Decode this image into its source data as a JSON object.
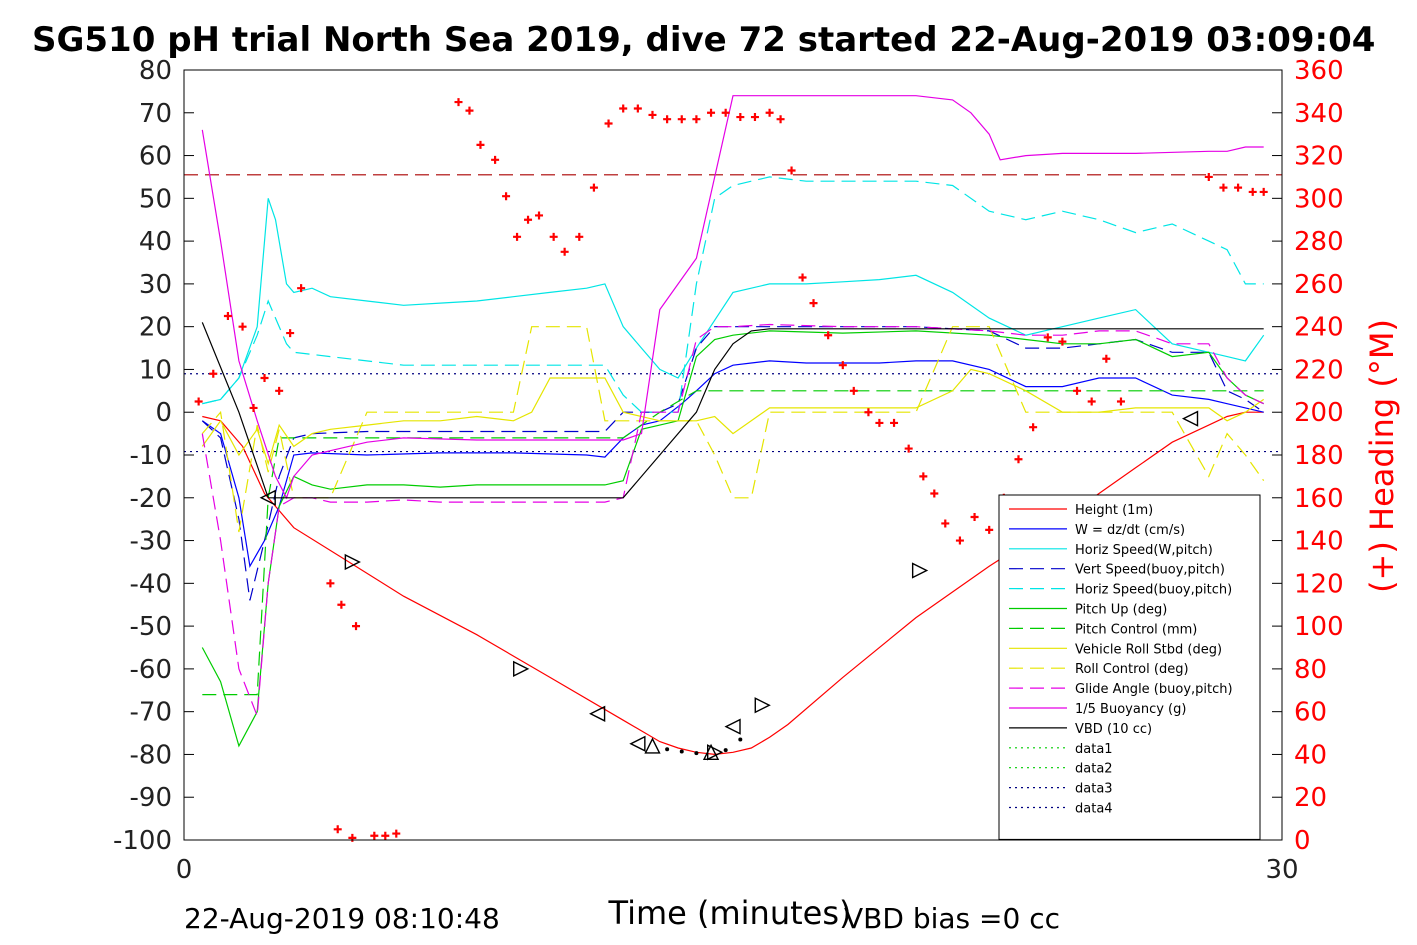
{
  "chart_data": {
    "type": "line",
    "title": "SG510 pH trial North Sea 2019, dive 72 started 22-Aug-2019 03:09:04",
    "xlabel": "Time (minutes)",
    "ylabel_right": "(+) Heading (°M)",
    "footer_left": "22-Aug-2019 08:10:48",
    "footer_right": "VBD bias =0 cc",
    "xlim": [
      0,
      30
    ],
    "ylim": [
      -100,
      80
    ],
    "y2lim": [
      0,
      360
    ],
    "xticks": [
      "0",
      "30"
    ],
    "yticks": [
      "80",
      "70",
      "60",
      "50",
      "40",
      "30",
      "20",
      "10",
      "0",
      "-10",
      "-20",
      "-30",
      "-40",
      "-50",
      "-60",
      "-70",
      "-80",
      "-90",
      "-100"
    ],
    "y2ticks": [
      "360",
      "340",
      "320",
      "300",
      "280",
      "260",
      "240",
      "220",
      "200",
      "180",
      "160",
      "140",
      "120",
      "100",
      "80",
      "60",
      "40",
      "20",
      "0"
    ],
    "legend_position": "lower-right",
    "reference_lines": [
      {
        "y": 55.5,
        "color": "#aa0000",
        "style": "dashed"
      },
      {
        "y": 9,
        "color": "#000080",
        "style": "dotted"
      },
      {
        "y": -9.2,
        "color": "#000080",
        "style": "dotted"
      }
    ],
    "series": [
      {
        "name": "Height (1m)",
        "color": "#ff0000",
        "style": "solid",
        "x": [
          0.5,
          1.0,
          1.6,
          2.2,
          3.0,
          4.5,
          6.0,
          8.0,
          10.0,
          12.0,
          13.0,
          13.5,
          14.0,
          14.5,
          15.0,
          15.5,
          16.0,
          16.5,
          18.0,
          20.0,
          22.0,
          24.0,
          25.0,
          26.0,
          27.0,
          28.0,
          28.5,
          29.0,
          29.5
        ],
        "y": [
          -1,
          -2,
          -8,
          -19,
          -27,
          -35,
          -43,
          -52,
          -62,
          -72,
          -77,
          -78.5,
          -79.5,
          -80,
          -79.5,
          -78.5,
          -76,
          -73,
          -62,
          -48,
          -36,
          -25,
          -19,
          -13,
          -7,
          -3,
          -1,
          0,
          0
        ]
      },
      {
        "name": "W = dz/dt (cm/s)",
        "color": "#0000ff",
        "style": "solid",
        "x": [
          0.5,
          1.0,
          1.5,
          1.8,
          2.2,
          2.6,
          3.0,
          3.5,
          5.0,
          7.0,
          9.0,
          11.0,
          11.5,
          12.0,
          12.5,
          13.0,
          13.6,
          14.0,
          14.5,
          15.0,
          15.5,
          16.0,
          17.0,
          18.0,
          19.0,
          20.0,
          21.0,
          22.0,
          23.0,
          24.0,
          25.0,
          26.0,
          27.0,
          28.0,
          28.5,
          29.0,
          29.5
        ],
        "y": [
          -2,
          -5,
          -20,
          -36,
          -30,
          -22,
          -10,
          -9.5,
          -10,
          -9.5,
          -9.5,
          -10,
          -10.5,
          -6,
          -3,
          -2,
          2,
          5,
          9,
          11,
          11.5,
          12,
          11.5,
          11.5,
          11.5,
          12,
          12,
          10,
          6,
          6,
          8,
          8,
          4,
          3,
          2,
          1,
          0
        ]
      },
      {
        "name": "Horiz Speed(W,pitch)",
        "color": "#00e5e5",
        "style": "solid",
        "x": [
          0.5,
          1.0,
          1.5,
          2.0,
          2.3,
          2.5,
          2.8,
          3.0,
          3.5,
          4.0,
          5.0,
          6.0,
          7.0,
          8.0,
          9.0,
          10.0,
          11.0,
          11.5,
          12.0,
          12.5,
          13.0,
          13.5,
          14.0,
          15.0,
          16.0,
          17.0,
          18.0,
          19.0,
          20.0,
          21.0,
          22.0,
          23.0,
          24.0,
          25.0,
          26.0,
          27.0,
          28.0,
          28.5,
          29.0,
          29.5
        ],
        "y": [
          2,
          3,
          8,
          20,
          50,
          45,
          30,
          28,
          29,
          27,
          26,
          25,
          25.5,
          26,
          27,
          28,
          29,
          30,
          20,
          15,
          10,
          8,
          15,
          28,
          30,
          30,
          30.5,
          31,
          32,
          28,
          22,
          18,
          20,
          22,
          24,
          16,
          14,
          13,
          12,
          18
        ]
      },
      {
        "name": "Vert Speed(buoy,pitch)",
        "color": "#0000cc",
        "style": "dashed",
        "x": [
          0.5,
          1.0,
          1.5,
          1.8,
          2.2,
          2.6,
          3.0,
          3.5,
          5.0,
          7.0,
          9.0,
          11.0,
          11.5,
          12.0,
          12.5,
          13.0,
          13.5,
          14.0,
          14.5,
          15.0,
          16.0,
          18.0,
          20.0,
          22.0,
          23.0,
          24.0,
          25.0,
          26.0,
          27.0,
          28.0,
          28.5,
          29.0,
          29.5
        ],
        "y": [
          -2,
          -6,
          -25,
          -44,
          -30,
          -15,
          -6,
          -5,
          -4.5,
          -4.5,
          -4.5,
          -4.5,
          -4.5,
          0,
          0,
          0,
          2,
          15,
          20,
          20,
          20,
          20,
          20,
          19,
          15,
          15,
          16,
          17,
          14,
          14,
          5,
          3,
          0
        ]
      },
      {
        "name": "Horiz Speed(buoy,pitch)",
        "color": "#00e5e5",
        "style": "dashed",
        "x": [
          0.5,
          1.0,
          1.5,
          2.0,
          2.3,
          2.5,
          2.8,
          3.0,
          4.0,
          6.0,
          8.0,
          10.0,
          11.0,
          11.5,
          12.0,
          12.5,
          13.0,
          13.5,
          14.0,
          14.5,
          15.0,
          16.0,
          17.0,
          18.0,
          19.0,
          20.0,
          21.0,
          22.0,
          23.0,
          24.0,
          25.0,
          26.0,
          27.0,
          28.0,
          28.5,
          29.0,
          29.5
        ],
        "y": [
          2,
          3,
          8,
          18,
          26,
          22,
          16,
          14,
          13,
          11,
          11,
          11,
          11,
          11,
          4,
          0,
          0,
          0,
          30,
          50,
          53,
          55,
          54,
          54,
          54,
          54,
          53,
          47,
          45,
          47,
          45,
          42,
          44,
          40,
          38,
          30,
          30
        ]
      },
      {
        "name": "Pitch Up (deg)",
        "color": "#00cc00",
        "style": "solid",
        "x": [
          0.5,
          1.0,
          1.5,
          2.0,
          2.3,
          2.6,
          3.0,
          3.5,
          4.0,
          5.0,
          6.0,
          7.0,
          8.0,
          9.0,
          10.0,
          11.0,
          11.5,
          12.0,
          12.5,
          13.0,
          13.5,
          14.0,
          14.5,
          15.0,
          16.0,
          18.0,
          20.0,
          22.0,
          23.0,
          24.0,
          25.0,
          26.0,
          27.0,
          28.0,
          28.5,
          29.0,
          29.5
        ],
        "y": [
          -55,
          -63,
          -78,
          -70,
          -40,
          -22,
          -15,
          -17,
          -18,
          -17,
          -17,
          -17.5,
          -17,
          -17,
          -17,
          -17,
          -17,
          -16,
          -4,
          -3,
          -2,
          13,
          17,
          18,
          19,
          18.5,
          19,
          18,
          17,
          16,
          16,
          17,
          13,
          14,
          8,
          4,
          2
        ]
      },
      {
        "name": "Pitch Control (mm)",
        "color": "#00cc00",
        "style": "dashed",
        "x": [
          0.5,
          1.0,
          1.5,
          2.0,
          2.3,
          2.6,
          3.0,
          5.0,
          8.0,
          11.0,
          12.0,
          13.0,
          14.0,
          15.0,
          17.0,
          20.0,
          23.0,
          26.0,
          28.0,
          29.0,
          29.5
        ],
        "y": [
          -66,
          -66,
          -66,
          -66,
          -20,
          -6,
          -6,
          -6,
          -6,
          -6,
          -6,
          0,
          5,
          5,
          5,
          5,
          5,
          5,
          5,
          5,
          5
        ]
      },
      {
        "name": "Vehicle Roll Stbd (deg)",
        "color": "#e5e500",
        "style": "solid",
        "x": [
          0.5,
          1.0,
          1.5,
          2.0,
          2.3,
          2.6,
          3.0,
          3.5,
          4.0,
          5.0,
          6.0,
          7.0,
          8.0,
          9.0,
          9.5,
          10.0,
          11.0,
          11.5,
          12.0,
          13.0,
          14.0,
          14.5,
          15.0,
          16.0,
          18.0,
          19.0,
          20.0,
          21.0,
          21.5,
          22.0,
          23.0,
          24.0,
          25.0,
          26.0,
          27.0,
          28.0,
          28.5,
          29.0,
          29.5
        ],
        "y": [
          -8,
          -2,
          -10,
          -4,
          -12,
          -3,
          -8,
          -5,
          -4,
          -3,
          -2,
          -2,
          -1,
          -2,
          0,
          8,
          8,
          8,
          0,
          -2,
          -2,
          -1,
          -5,
          1,
          1,
          1,
          1,
          5,
          10,
          9,
          5,
          0,
          0,
          1,
          1,
          1,
          -2,
          0,
          3
        ]
      },
      {
        "name": "Roll Control (deg)",
        "color": "#e5e500",
        "style": "dashed",
        "x": [
          0.5,
          1.0,
          1.5,
          2.0,
          2.3,
          2.6,
          3.0,
          4.0,
          5.0,
          6.0,
          8.0,
          9.0,
          9.5,
          10.0,
          10.5,
          11.0,
          11.5,
          12.0,
          13.0,
          14.0,
          14.5,
          15.0,
          15.5,
          16.0,
          18.0,
          19.0,
          20.0,
          21.0,
          21.5,
          22.0,
          23.0,
          24.0,
          25.0,
          26.0,
          27.0,
          28.0,
          28.5,
          29.0,
          29.5
        ],
        "y": [
          -5,
          0,
          -28,
          -3,
          -14,
          -4,
          -20,
          -20,
          0,
          0,
          0,
          0,
          20,
          20,
          20,
          20,
          -2,
          -2,
          -2,
          -2,
          -10,
          -20,
          -20,
          0,
          0,
          0,
          0,
          20,
          20,
          20,
          0,
          0,
          0,
          0,
          0,
          -15,
          -5,
          -10,
          -16
        ]
      },
      {
        "name": "Glide Angle (buoy,pitch)",
        "color": "#e500e5",
        "style": "dashed",
        "x": [
          0.5,
          1.0,
          1.5,
          2.0,
          2.3,
          2.6,
          3.0,
          3.5,
          4.0,
          5.0,
          6.0,
          7.0,
          8.0,
          9.0,
          10.0,
          11.0,
          11.5,
          12.0,
          12.5,
          13.0,
          13.5,
          14.0,
          14.5,
          15.0,
          16.0,
          18.0,
          20.0,
          22.0,
          23.0,
          24.0,
          25.0,
          26.0,
          27.0,
          28.0,
          28.5,
          29.0,
          29.5
        ],
        "y": [
          -5,
          -30,
          -60,
          -71,
          -40,
          -22,
          -20,
          -20,
          -21,
          -21,
          -20.5,
          -21,
          -21,
          -21,
          -21,
          -21,
          -21,
          -20,
          0,
          0,
          0,
          17,
          20,
          20,
          20.5,
          20,
          20,
          19,
          18,
          18,
          19,
          19,
          16,
          16,
          8,
          4,
          2
        ]
      },
      {
        "name": "1/5 Buoyancy (g)",
        "color": "#e500e5",
        "style": "solid",
        "x": [
          0.5,
          1.0,
          1.5,
          2.0,
          2.5,
          2.8,
          3.0,
          3.5,
          4.0,
          5.0,
          6.0,
          8.0,
          10.0,
          11.0,
          11.5,
          12.0,
          12.5,
          13.0,
          14.0,
          15.0,
          16.0,
          18.0,
          20.0,
          21.0,
          21.5,
          22.0,
          22.3,
          23.0,
          24.0,
          26.0,
          28.0,
          28.5,
          29.0,
          29.5
        ],
        "y": [
          66,
          40,
          12,
          -2,
          -15,
          -20,
          -15,
          -10,
          -9,
          -7,
          -6,
          -6.5,
          -6.5,
          -6.5,
          -6.5,
          -6.5,
          -5,
          24,
          36,
          74,
          74,
          74,
          74,
          73,
          70,
          65,
          59,
          60,
          60.5,
          60.5,
          61,
          61,
          62,
          62
        ]
      },
      {
        "name": "VBD (10 cc)",
        "color": "#000000",
        "style": "solid",
        "x": [
          0.5,
          1.5,
          2.3,
          3.0,
          5.0,
          8.0,
          11.0,
          11.7,
          12.0,
          13.0,
          14.0,
          14.5,
          15.0,
          15.5,
          16.0,
          18.0,
          20.0,
          22.0,
          24.0,
          26.0,
          28.0,
          29.5
        ],
        "y": [
          21,
          0,
          -20,
          -20,
          -20,
          -20,
          -20,
          -20,
          -20,
          -10,
          0,
          10,
          16,
          19,
          19.5,
          19.5,
          19.5,
          19.5,
          19.5,
          19.5,
          19.5,
          19.5
        ]
      },
      {
        "name": "data1",
        "color": "#00cc00",
        "style": "dotted",
        "x": [],
        "y": []
      },
      {
        "name": "data2",
        "color": "#00cc00",
        "style": "dotted",
        "x": [],
        "y": []
      },
      {
        "name": "data3",
        "color": "#000080",
        "style": "dotted",
        "x": [],
        "y": []
      },
      {
        "name": "data4",
        "color": "#000080",
        "style": "dotted",
        "x": [],
        "y": []
      }
    ],
    "triangle_markers": [
      {
        "x": 2.3,
        "y": -20,
        "dir": "left"
      },
      {
        "x": 4.6,
        "y": -35,
        "dir": "right"
      },
      {
        "x": 9.2,
        "y": -60,
        "dir": "right"
      },
      {
        "x": 11.3,
        "y": -70.5,
        "dir": "left"
      },
      {
        "x": 12.4,
        "y": -77.5,
        "dir": "left"
      },
      {
        "x": 12.8,
        "y": -78,
        "dir": "up"
      },
      {
        "x": 14.4,
        "y": -79.5,
        "dir": "up"
      },
      {
        "x": 14.5,
        "y": -79.5,
        "dir": "right"
      },
      {
        "x": 15.0,
        "y": -73.5,
        "dir": "left"
      },
      {
        "x": 15.8,
        "y": -68.5,
        "dir": "right"
      },
      {
        "x": 20.1,
        "y": -37,
        "dir": "right"
      },
      {
        "x": 27.5,
        "y": -1.5,
        "dir": "left"
      }
    ],
    "dot_markers": [
      {
        "x": 13.2,
        "y": -78.8
      },
      {
        "x": 13.6,
        "y": -79.3
      },
      {
        "x": 14.0,
        "y": -79.7
      },
      {
        "x": 14.8,
        "y": -79
      },
      {
        "x": 15.2,
        "y": -76.5
      }
    ],
    "heading_points": {
      "name": "(+) Heading",
      "color": "#ff0000",
      "x": [
        0.4,
        0.8,
        1.2,
        1.6,
        1.9,
        2.2,
        2.6,
        2.9,
        3.2,
        4.0,
        4.3,
        4.7,
        4.2,
        4.6,
        5.2,
        5.5,
        5.8,
        7.5,
        7.8,
        8.1,
        8.5,
        8.8,
        9.1,
        9.4,
        9.7,
        10.1,
        10.4,
        10.8,
        11.2,
        11.6,
        12.0,
        12.4,
        12.8,
        13.2,
        13.6,
        14.0,
        14.4,
        14.8,
        15.2,
        15.6,
        16.0,
        16.3,
        16.6,
        16.9,
        17.2,
        17.6,
        18.0,
        18.3,
        18.7,
        19.0,
        19.4,
        19.8,
        20.2,
        20.5,
        20.8,
        21.2,
        21.6,
        22.0,
        22.4,
        22.8,
        23.2,
        23.6,
        24.0,
        24.4,
        24.8,
        25.2,
        25.6,
        26.0,
        26.4,
        26.8,
        27.2,
        27.6,
        28.0,
        28.4,
        28.8,
        29.2,
        29.5
      ],
      "y": [
        205,
        218,
        245,
        240,
        202,
        216,
        210,
        237,
        258,
        120,
        110,
        100,
        5,
        1,
        2,
        2,
        3,
        345,
        341,
        325,
        318,
        301,
        282,
        290,
        292,
        282,
        275,
        282,
        305,
        335,
        342,
        342,
        339,
        337,
        337,
        337,
        340,
        340,
        338,
        338,
        340,
        337,
        313,
        263,
        251,
        236,
        222,
        210,
        200,
        195,
        195,
        183,
        170,
        162,
        148,
        140,
        151,
        145,
        160,
        178,
        193,
        235,
        233,
        210,
        205,
        225,
        205,
        125,
        52,
        48,
        110,
        150,
        310,
        305,
        305,
        303,
        303
      ]
    }
  }
}
